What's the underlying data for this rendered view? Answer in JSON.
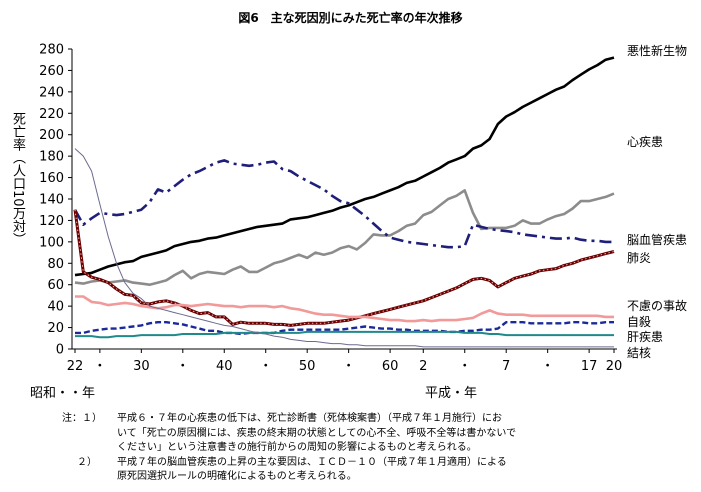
{
  "chart_data": {
    "type": "line",
    "title": "図6　主な死因別にみた死亡率の年次推移",
    "ylabel": "死亡率（人口10万対）",
    "xlabel_left": "昭和・・年",
    "xlabel_right": "平成・年",
    "ylim": [
      0,
      280
    ],
    "yticks": [
      0,
      20,
      40,
      60,
      80,
      100,
      120,
      140,
      160,
      180,
      200,
      220,
      240,
      260,
      280
    ],
    "x_ticks": [
      {
        "index": 0,
        "label": "22"
      },
      {
        "index": 3,
        "label": "・"
      },
      {
        "index": 8,
        "label": "30"
      },
      {
        "index": 13,
        "label": "・"
      },
      {
        "index": 18,
        "label": "40"
      },
      {
        "index": 23,
        "label": "・"
      },
      {
        "index": 28,
        "label": "50"
      },
      {
        "index": 33,
        "label": "・"
      },
      {
        "index": 38,
        "label": "60"
      },
      {
        "index": 42,
        "label": "2"
      },
      {
        "index": 47,
        "label": "・"
      },
      {
        "index": 52,
        "label": "7"
      },
      {
        "index": 57,
        "label": "・"
      },
      {
        "index": 62,
        "label": "17"
      },
      {
        "index": 65,
        "label": "20"
      }
    ],
    "grid": false,
    "legend": "right-end labels",
    "series": [
      {
        "name": "悪性新生物",
        "color": "#000000",
        "style": "solid-thick",
        "values": [
          69,
          70,
          71,
          74,
          77,
          79,
          81,
          82,
          86,
          88,
          90,
          92,
          96,
          98,
          100,
          101,
          103,
          104,
          106,
          108,
          110,
          112,
          114,
          115,
          116,
          117,
          121,
          122,
          123,
          125,
          127,
          129,
          132,
          134,
          137,
          140,
          142,
          145,
          148,
          151,
          155,
          157,
          161,
          165,
          169,
          174,
          177,
          180,
          187,
          190,
          196,
          210,
          217,
          221,
          226,
          230,
          234,
          238,
          242,
          245,
          251,
          256,
          261,
          265,
          270,
          272
        ]
      },
      {
        "name": "心疾患",
        "color": "#8c8c8c",
        "style": "solid-thick",
        "values": [
          62,
          61,
          63,
          64,
          62,
          63,
          64,
          62,
          61,
          60,
          62,
          64,
          69,
          73,
          66,
          70,
          72,
          71,
          70,
          74,
          77,
          72,
          72,
          76,
          80,
          82,
          85,
          88,
          85,
          90,
          88,
          90,
          94,
          96,
          93,
          99,
          107,
          106,
          106,
          110,
          115,
          117,
          125,
          128,
          134,
          140,
          143,
          148,
          127,
          112,
          113,
          113,
          113,
          115,
          120,
          117,
          117,
          121,
          124,
          126,
          131,
          138,
          138,
          140,
          142,
          145
        ]
      },
      {
        "name": "脳血管疾患",
        "color": "#1f1f7a",
        "style": "dashdot",
        "values": [
          130,
          116,
          122,
          127,
          126,
          125,
          126,
          128,
          130,
          137,
          149,
          146,
          152,
          158,
          163,
          166,
          170,
          174,
          176,
          173,
          172,
          171,
          172,
          174,
          175,
          168,
          166,
          161,
          157,
          153,
          149,
          143,
          138,
          136,
          130,
          124,
          117,
          110,
          104,
          102,
          100,
          99,
          98,
          97,
          96,
          95,
          95,
          96,
          116,
          114,
          112,
          111,
          110,
          109,
          107,
          106,
          105,
          104,
          103,
          103,
          104,
          102,
          101,
          101,
          100,
          100
        ]
      },
      {
        "name": "肺炎",
        "color": "#6a0000",
        "style": "solid-dotted",
        "values": [
          130,
          72,
          67,
          65,
          62,
          56,
          51,
          50,
          43,
          42,
          44,
          45,
          43,
          40,
          36,
          33,
          34,
          30,
          30,
          23,
          25,
          24,
          24,
          24,
          23,
          23,
          22,
          23,
          24,
          24,
          24,
          25,
          26,
          27,
          29,
          31,
          33,
          35,
          37,
          39,
          41,
          43,
          45,
          48,
          51,
          54,
          57,
          61,
          65,
          66,
          64,
          58,
          62,
          66,
          68,
          70,
          73,
          74,
          75,
          78,
          80,
          83,
          85,
          87,
          89,
          91
        ]
      },
      {
        "name": "不慮の事故",
        "color": "#f29a9a",
        "style": "solid-thick",
        "values": [
          49,
          49,
          44,
          43,
          41,
          42,
          43,
          42,
          40,
          39,
          38,
          39,
          41,
          41,
          40,
          41,
          42,
          41,
          40,
          40,
          39,
          40,
          40,
          40,
          39,
          40,
          38,
          37,
          35,
          33,
          32,
          32,
          31,
          30,
          30,
          30,
          29,
          28,
          27,
          27,
          26,
          26,
          27,
          26,
          27,
          27,
          27,
          28,
          29,
          33,
          36,
          33,
          32,
          32,
          32,
          31,
          31,
          31,
          31,
          31,
          31,
          31,
          31,
          31,
          30,
          30
        ]
      },
      {
        "name": "自殺",
        "color": "#1a2a9a",
        "style": "dashed",
        "values": [
          15,
          15,
          17,
          18,
          19,
          19,
          20,
          21,
          22,
          24,
          25,
          25,
          24,
          23,
          21,
          19,
          17,
          17,
          15,
          15,
          14,
          15,
          15,
          15,
          15,
          17,
          18,
          18,
          18,
          18,
          18,
          18,
          18,
          19,
          20,
          21,
          20,
          19,
          19,
          18,
          18,
          17,
          17,
          17,
          17,
          16,
          16,
          17,
          17,
          18,
          18,
          19,
          25,
          25,
          25,
          24,
          24,
          24,
          24,
          24,
          25,
          25,
          24,
          24,
          25,
          25
        ]
      },
      {
        "name": "肝疾患",
        "color": "#1f8a8a",
        "style": "solid",
        "values": [
          12,
          12,
          12,
          11,
          11,
          12,
          12,
          12,
          13,
          13,
          13,
          13,
          13,
          14,
          14,
          14,
          14,
          14,
          15,
          15,
          15,
          15,
          15,
          15,
          15,
          15,
          15,
          15,
          16,
          16,
          16,
          16,
          16,
          16,
          16,
          16,
          16,
          16,
          16,
          16,
          16,
          16,
          16,
          16,
          16,
          16,
          16,
          15,
          15,
          15,
          14,
          14,
          13,
          13,
          13,
          13,
          13,
          13,
          13,
          13,
          13,
          13,
          13,
          13,
          13,
          13
        ]
      },
      {
        "name": "結核",
        "color": "#6b6b8f",
        "style": "solid-thin",
        "values": [
          187,
          180,
          166,
          135,
          105,
          80,
          62,
          52,
          47,
          40,
          38,
          36,
          34,
          32,
          30,
          28,
          26,
          24,
          22,
          21,
          19,
          17,
          15,
          14,
          12,
          11,
          9,
          8,
          7,
          7,
          6,
          5,
          5,
          4,
          4,
          3,
          3,
          3,
          3,
          3,
          3,
          3,
          2,
          2,
          2,
          2,
          2,
          2,
          2,
          2,
          2,
          2,
          2,
          2,
          2,
          2,
          2,
          2,
          2,
          2,
          2,
          2,
          2,
          2,
          2,
          2
        ]
      }
    ]
  },
  "notes": [
    {
      "num": "注：１）",
      "lines": [
        "平成６・７年の心疾患の低下は、死亡診断書（死体検案書）（平成７年１月施行）にお",
        "いて「死亡の原因欄には、疾患の終末期の状態としての心不全、呼吸不全等は書かないで",
        "ください」という注意書きの施行前からの周知の影響によるものと考えられる。"
      ]
    },
    {
      "num": "２）",
      "lines": [
        "平成７年の脳血管疾患の上昇の主な要因は、ＩＣＤ－１０（平成７年１月適用）による",
        "原死因選択ルールの明確化によるものと考えられる。"
      ]
    }
  ]
}
